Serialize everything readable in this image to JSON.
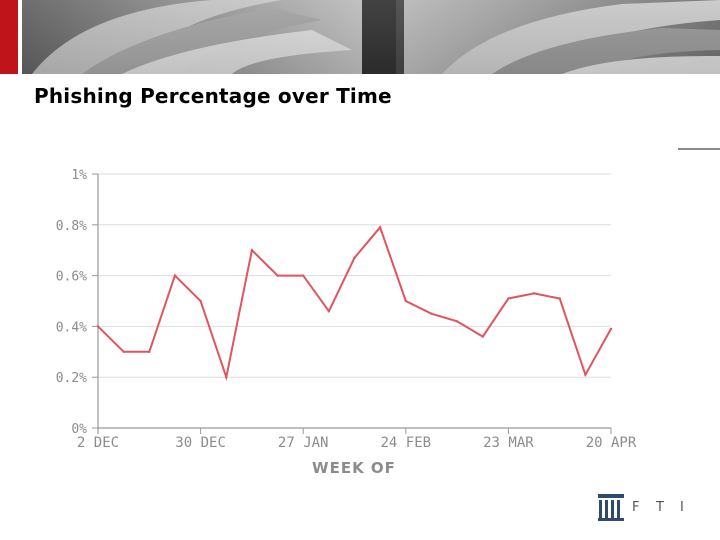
{
  "page": {
    "title": "Phishing Percentage over Time"
  },
  "logo": {
    "letters": [
      "F",
      "T",
      "I"
    ],
    "icon": "building-columns-icon"
  },
  "colors": {
    "accent": "#c0141b",
    "series": "#e0555d",
    "grid": "#dddddd",
    "axis": "#999999",
    "labels": "#8c8c8c"
  },
  "chart_data": {
    "type": "line",
    "title": "",
    "xlabel": "WEEK OF",
    "ylabel": "",
    "ylim": [
      0,
      1
    ],
    "y_ticks": [
      {
        "value": 0,
        "label": "0%"
      },
      {
        "value": 0.2,
        "label": "0.2%"
      },
      {
        "value": 0.4,
        "label": "0.4%"
      },
      {
        "value": 0.6,
        "label": "0.6%"
      },
      {
        "value": 0.8,
        "label": "0.8%"
      },
      {
        "value": 1,
        "label": "1%"
      }
    ],
    "x_ticks": [
      {
        "index": 0,
        "label": "2 DEC"
      },
      {
        "index": 4,
        "label": "30 DEC"
      },
      {
        "index": 8,
        "label": "27 JAN"
      },
      {
        "index": 12,
        "label": "24 FEB"
      },
      {
        "index": 16,
        "label": "23 MAR"
      },
      {
        "index": 20,
        "label": "20 APR"
      }
    ],
    "grid": "horizontal",
    "series": [
      {
        "values": [
          0.4,
          0.3,
          0.3,
          0.6,
          0.5,
          0.2,
          0.7,
          0.6,
          0.6,
          0.46,
          0.67,
          0.79,
          0.5,
          0.45,
          0.42,
          0.36,
          0.51,
          0.53,
          0.51,
          0.21,
          0.39
        ]
      }
    ]
  }
}
